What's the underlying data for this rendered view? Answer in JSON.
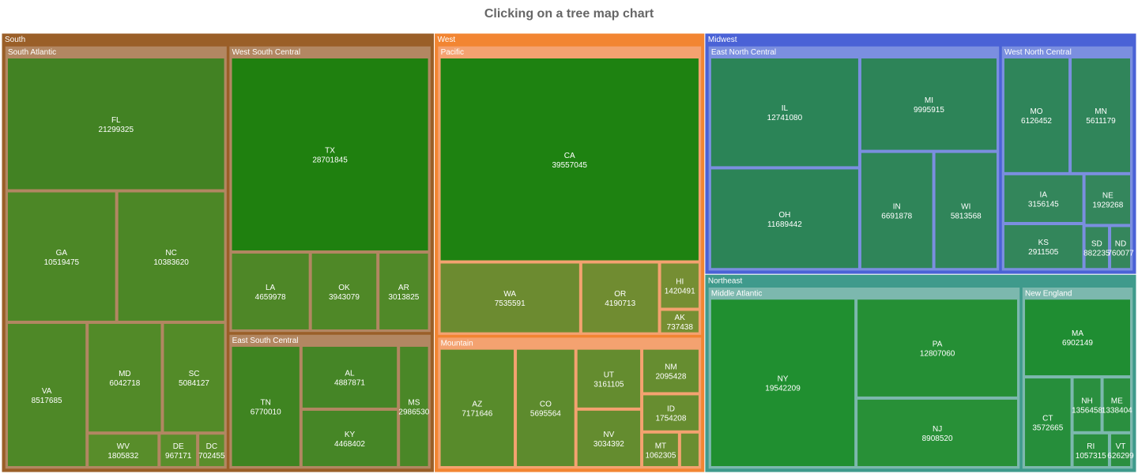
{
  "chart_data": {
    "type": "treemap",
    "title": "Clicking on a tree map chart",
    "regions": [
      {
        "name": "South",
        "color": "#9a5f28",
        "divisions": [
          {
            "name": "South Atlantic",
            "color": "#b28762",
            "states": [
              {
                "name": "FL",
                "value": 21299325,
                "color": "#428223"
              },
              {
                "name": "GA",
                "value": 10519475,
                "color": "#4c8726"
              },
              {
                "name": "NC",
                "value": 10383620,
                "color": "#4c8726"
              },
              {
                "name": "VA",
                "value": 8517685,
                "color": "#4e8827"
              },
              {
                "name": "MD",
                "value": 6042718,
                "color": "#528a28"
              },
              {
                "name": "SC",
                "value": 5084127,
                "color": "#538b28"
              },
              {
                "name": "WV",
                "value": 1805832,
                "color": "#588d2a"
              },
              {
                "name": "DE",
                "value": 967171,
                "color": "#5a8e2b"
              },
              {
                "name": "DC",
                "value": 702455,
                "color": "#5a8e2b"
              }
            ]
          },
          {
            "name": "West South Central",
            "color": "#b28762",
            "states": [
              {
                "name": "TX",
                "value": 28701845,
                "color": "#1f800f"
              },
              {
                "name": "LA",
                "value": 4659978,
                "color": "#4e8727"
              },
              {
                "name": "OK",
                "value": 3943079,
                "color": "#4f8827"
              },
              {
                "name": "AR",
                "value": 3013825,
                "color": "#508928"
              }
            ]
          },
          {
            "name": "East South Central",
            "color": "#b28762",
            "states": [
              {
                "name": "TN",
                "value": 6770010,
                "color": "#3f8421"
              },
              {
                "name": "AL",
                "value": 4887871,
                "color": "#458526"
              },
              {
                "name": "KY",
                "value": 4468402,
                "color": "#468626"
              },
              {
                "name": "MS",
                "value": 2986530,
                "color": "#4a8727"
              }
            ]
          }
        ]
      },
      {
        "name": "West",
        "color": "#f28532",
        "divisions": [
          {
            "name": "Pacific",
            "color": "#f4a270",
            "states": [
              {
                "name": "CA",
                "value": 39557045,
                "color": "#1e8211"
              },
              {
                "name": "WA",
                "value": 7535591,
                "color": "#6c8b30"
              },
              {
                "name": "OR",
                "value": 4190713,
                "color": "#708c31"
              },
              {
                "name": "HI",
                "value": 1420491,
                "color": "#758e33"
              },
              {
                "name": "AK",
                "value": 737438,
                "color": "#768f33"
              }
            ]
          },
          {
            "name": "Mountain",
            "color": "#f4a270",
            "states": [
              {
                "name": "AZ",
                "value": 7171646,
                "color": "#588b2b"
              },
              {
                "name": "CO",
                "value": 5695564,
                "color": "#5d8b2d"
              },
              {
                "name": "UT",
                "value": 3161105,
                "color": "#648c2f"
              },
              {
                "name": "NV",
                "value": 3034392,
                "color": "#648c2f"
              },
              {
                "name": "NM",
                "value": 2095428,
                "color": "#668d30"
              },
              {
                "name": "ID",
                "value": 1754208,
                "color": "#678d30"
              },
              {
                "name": "MT",
                "value": 1062305,
                "color": "#698d31"
              },
              {
                "name": "",
                "value": 577737,
                "color": "#6a8e31"
              }
            ]
          }
        ]
      },
      {
        "name": "Midwest",
        "color": "#4a62d6",
        "divisions": [
          {
            "name": "East North Central",
            "color": "#7b8fe0",
            "states": [
              {
                "name": "IL",
                "value": 12741080,
                "color": "#2b8457"
              },
              {
                "name": "OH",
                "value": 11689442,
                "color": "#2c8457"
              },
              {
                "name": "MI",
                "value": 9995915,
                "color": "#2d8458"
              },
              {
                "name": "IN",
                "value": 6691878,
                "color": "#2f8559"
              },
              {
                "name": "WI",
                "value": 5813568,
                "color": "#30855a"
              }
            ]
          },
          {
            "name": "West North Central",
            "color": "#7b8fe0",
            "states": [
              {
                "name": "MO",
                "value": 6126452,
                "color": "#2f855a"
              },
              {
                "name": "MN",
                "value": 5611179,
                "color": "#30855a"
              },
              {
                "name": "IA",
                "value": 3156145,
                "color": "#33865b"
              },
              {
                "name": "KS",
                "value": 2911505,
                "color": "#33865b"
              },
              {
                "name": "NE",
                "value": 1929268,
                "color": "#34865c"
              },
              {
                "name": "SD",
                "value": 882235,
                "color": "#35865c"
              },
              {
                "name": "ND",
                "value": 760077,
                "color": "#35865c"
              }
            ]
          }
        ]
      },
      {
        "name": "Northeast",
        "color": "#3f9a8c",
        "divisions": [
          {
            "name": "Middle Atlantic",
            "color": "#7cb8ae",
            "states": [
              {
                "name": "NY",
                "value": 19542209,
                "color": "#208f30"
              },
              {
                "name": "PA",
                "value": 12807060,
                "color": "#258f35"
              },
              {
                "name": "NJ",
                "value": 8908520,
                "color": "#289037"
              }
            ]
          },
          {
            "name": "New England",
            "color": "#7cb8ae",
            "states": [
              {
                "name": "MA",
                "value": 6902149,
                "color": "#1f8d32"
              },
              {
                "name": "CT",
                "value": 3572665,
                "color": "#268e3b"
              },
              {
                "name": "NH",
                "value": 1356458,
                "color": "#2a8f3f"
              },
              {
                "name": "ME",
                "value": 1338404,
                "color": "#2a8f3f"
              },
              {
                "name": "RI",
                "value": 1057315,
                "color": "#2a8f3f"
              },
              {
                "name": "VT",
                "value": 626299,
                "color": "#2b8f40"
              }
            ]
          }
        ]
      }
    ]
  }
}
